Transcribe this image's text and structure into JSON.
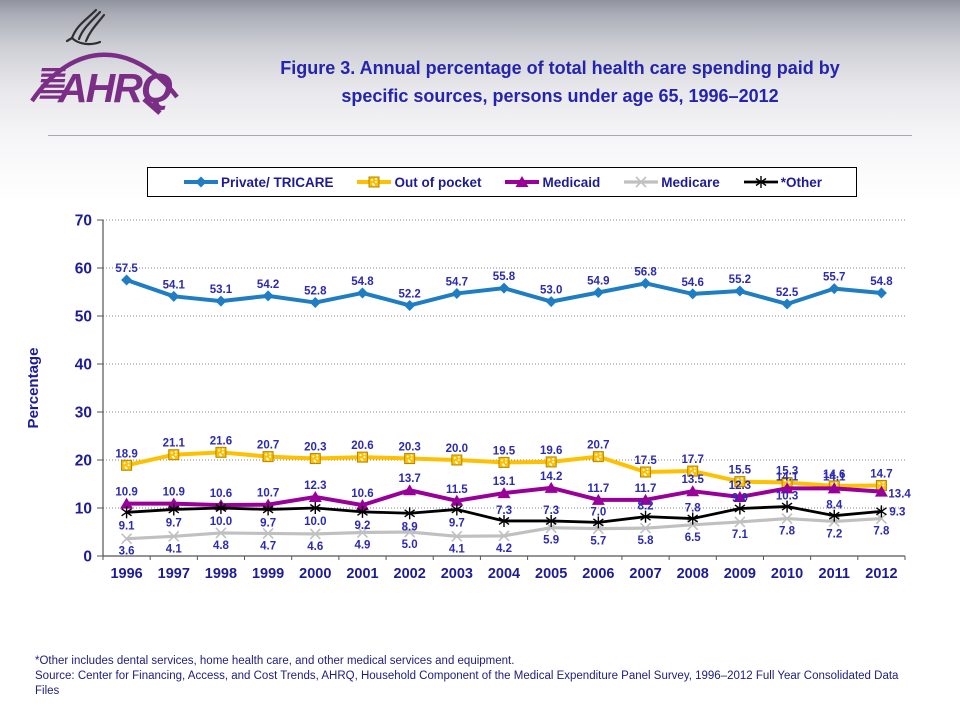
{
  "header": {
    "logo_text": "AHRQ",
    "title_line1": "Figure 3. Annual percentage of total health care spending paid by",
    "title_line2": "specific sources, persons under age 65, 1996–2012"
  },
  "legend": {
    "items": [
      {
        "label": "Private/ TRICARE"
      },
      {
        "label": "Out of pocket"
      },
      {
        "label": "Medicaid"
      },
      {
        "label": "Medicare"
      },
      {
        "label": "*Other"
      }
    ]
  },
  "chart_data": {
    "type": "line",
    "title": "Figure 3. Annual percentage of total health care spending paid by specific sources, persons under age 65, 1996–2012",
    "xlabel": "",
    "ylabel": "Percentage",
    "ylim": [
      0,
      70
    ],
    "yticks": [
      0,
      10,
      20,
      30,
      40,
      50,
      60,
      70
    ],
    "grid": true,
    "legend_position": "top",
    "categories": [
      "1996",
      "1997",
      "1998",
      "1999",
      "2000",
      "2001",
      "2002",
      "2003",
      "2004",
      "2005",
      "2006",
      "2007",
      "2008",
      "2009",
      "2010",
      "2011",
      "2012"
    ],
    "series": [
      {
        "name": "Private/ TRICARE",
        "key": "private",
        "color": "#1f7dc4",
        "marker": "diamond",
        "values": [
          57.5,
          54.1,
          53.1,
          54.2,
          52.8,
          54.8,
          52.2,
          54.7,
          55.8,
          53.0,
          54.9,
          56.8,
          54.6,
          55.2,
          52.5,
          55.7,
          54.8
        ]
      },
      {
        "name": "Out of pocket",
        "key": "oop",
        "color": "#ffc000",
        "marker": "square",
        "values": [
          18.9,
          21.1,
          21.6,
          20.7,
          20.3,
          20.6,
          20.3,
          20.0,
          19.5,
          19.6,
          20.7,
          17.5,
          17.7,
          15.5,
          15.3,
          14.6,
          14.7
        ]
      },
      {
        "name": "Medicaid",
        "key": "medicaid",
        "color": "#990099",
        "marker": "triangle",
        "values": [
          10.9,
          10.9,
          10.6,
          10.7,
          12.3,
          10.6,
          13.7,
          11.5,
          13.1,
          14.2,
          11.7,
          11.7,
          13.5,
          12.3,
          14.1,
          14.1,
          13.4
        ]
      },
      {
        "name": "Medicare",
        "key": "medicare",
        "color": "#c0c0c0",
        "marker": "xmark",
        "values": [
          3.6,
          4.1,
          4.8,
          4.7,
          4.6,
          4.9,
          5.0,
          4.1,
          4.2,
          5.9,
          5.7,
          5.8,
          6.5,
          7.1,
          7.8,
          7.2,
          7.8
        ]
      },
      {
        "name": "*Other",
        "key": "other",
        "color": "#000000",
        "marker": "asterisk",
        "values": [
          9.1,
          9.7,
          10.0,
          9.7,
          10.0,
          9.2,
          8.9,
          9.7,
          7.3,
          7.3,
          7.0,
          8.2,
          7.8,
          9.9,
          10.3,
          8.4,
          9.3
        ]
      }
    ]
  },
  "colors": {
    "title": "#2424ae",
    "axis_labels": "#1c1c96",
    "data_labels": "#2b2bb0",
    "logo_purple": "#7b2e86",
    "gridline": "#808080",
    "footer_text": "#20207e"
  },
  "footer": {
    "note": "*Other includes dental services, home health care, and other medical services and equipment.",
    "source": "Source: Center for Financing, Access, and Cost Trends, AHRQ, Household Component of the Medical Expenditure Panel Survey,  1996–2012 Full Year Consolidated Data Files"
  }
}
